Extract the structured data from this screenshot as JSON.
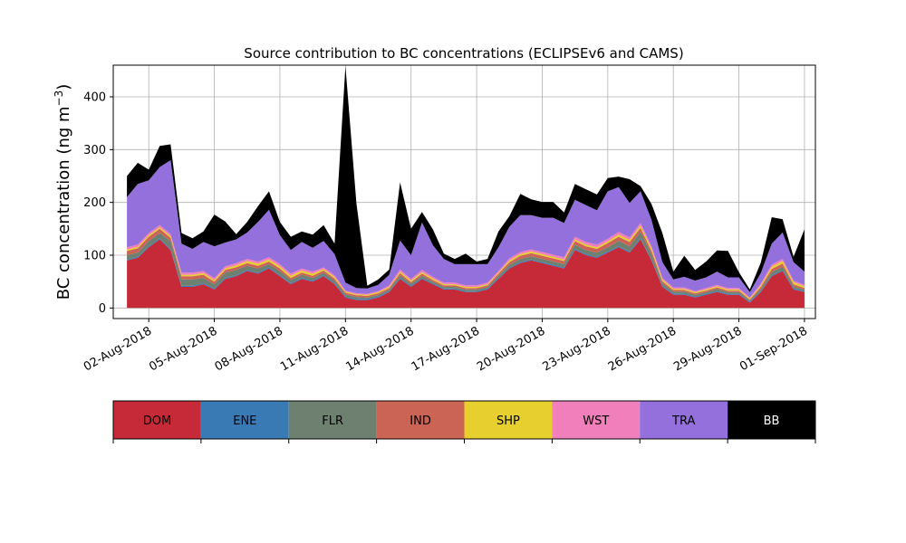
{
  "chart_data": {
    "type": "area",
    "stacked": true,
    "title": "Source contribution to BC concentrations (ECLIPSEv6 and CAMS)",
    "ylabel": "BC concentration (ng m",
    "ylabel_sup": "−3",
    "ylabel_close": ")",
    "ylim": [
      -20,
      460
    ],
    "xlim": [
      "2018-07-31T09:00",
      "2018-09-01T12:00"
    ],
    "grid": true,
    "yticks": [
      0,
      100,
      200,
      300,
      400
    ],
    "xticks": [
      {
        "date": "2018-08-02",
        "label": "02-Aug-2018"
      },
      {
        "date": "2018-08-05",
        "label": "05-Aug-2018"
      },
      {
        "date": "2018-08-08",
        "label": "08-Aug-2018"
      },
      {
        "date": "2018-08-11",
        "label": "11-Aug-2018"
      },
      {
        "date": "2018-08-14",
        "label": "14-Aug-2018"
      },
      {
        "date": "2018-08-17",
        "label": "17-Aug-2018"
      },
      {
        "date": "2018-08-20",
        "label": "20-Aug-2018"
      },
      {
        "date": "2018-08-23",
        "label": "23-Aug-2018"
      },
      {
        "date": "2018-08-26",
        "label": "26-Aug-2018"
      },
      {
        "date": "2018-08-29",
        "label": "29-Aug-2018"
      },
      {
        "date": "2018-09-01",
        "label": "01-Sep-2018"
      }
    ],
    "x": [
      "2018-08-01T00:00",
      "2018-08-01T12:00",
      "2018-08-02T00:00",
      "2018-08-02T12:00",
      "2018-08-03T00:00",
      "2018-08-03T12:00",
      "2018-08-04T00:00",
      "2018-08-04T12:00",
      "2018-08-05T00:00",
      "2018-08-05T12:00",
      "2018-08-06T00:00",
      "2018-08-06T12:00",
      "2018-08-07T00:00",
      "2018-08-07T12:00",
      "2018-08-08T00:00",
      "2018-08-08T12:00",
      "2018-08-09T00:00",
      "2018-08-09T12:00",
      "2018-08-10T00:00",
      "2018-08-10T12:00",
      "2018-08-11T00:00",
      "2018-08-11T12:00",
      "2018-08-12T00:00",
      "2018-08-12T12:00",
      "2018-08-13T00:00",
      "2018-08-13T12:00",
      "2018-08-14T00:00",
      "2018-08-14T12:00",
      "2018-08-15T00:00",
      "2018-08-15T12:00",
      "2018-08-16T00:00",
      "2018-08-16T12:00",
      "2018-08-17T00:00",
      "2018-08-17T12:00",
      "2018-08-18T00:00",
      "2018-08-18T12:00",
      "2018-08-19T00:00",
      "2018-08-19T12:00",
      "2018-08-20T00:00",
      "2018-08-20T12:00",
      "2018-08-21T00:00",
      "2018-08-21T12:00",
      "2018-08-22T00:00",
      "2018-08-22T12:00",
      "2018-08-23T00:00",
      "2018-08-23T12:00",
      "2018-08-24T00:00",
      "2018-08-24T12:00",
      "2018-08-25T00:00",
      "2018-08-25T12:00",
      "2018-08-26T00:00",
      "2018-08-26T12:00",
      "2018-08-27T00:00",
      "2018-08-27T12:00",
      "2018-08-28T00:00",
      "2018-08-28T12:00",
      "2018-08-29T00:00",
      "2018-08-29T12:00",
      "2018-08-30T00:00",
      "2018-08-30T12:00",
      "2018-08-31T00:00",
      "2018-08-31T12:00",
      "2018-09-01T00:00"
    ],
    "series": [
      {
        "name": "DOM",
        "color": "#c62a38",
        "values": [
          90,
          95,
          115,
          130,
          110,
          40,
          40,
          45,
          35,
          55,
          60,
          70,
          65,
          75,
          60,
          45,
          55,
          50,
          60,
          45,
          20,
          15,
          15,
          20,
          30,
          55,
          40,
          55,
          45,
          35,
          35,
          30,
          30,
          35,
          55,
          75,
          85,
          90,
          85,
          80,
          75,
          110,
          100,
          95,
          105,
          115,
          105,
          130,
          90,
          40,
          25,
          25,
          20,
          25,
          30,
          25,
          25,
          10,
          30,
          60,
          70,
          35,
          30
        ]
      },
      {
        "name": "ENE",
        "color": "#3a7ab4",
        "values": [
          2,
          2,
          2,
          2,
          2,
          2,
          2,
          2,
          2,
          2,
          2,
          2,
          2,
          2,
          2,
          2,
          2,
          2,
          2,
          2,
          2,
          2,
          2,
          2,
          2,
          2,
          2,
          2,
          2,
          2,
          2,
          2,
          2,
          2,
          2,
          2,
          2,
          2,
          2,
          2,
          2,
          2,
          2,
          2,
          2,
          2,
          2,
          2,
          2,
          2,
          2,
          2,
          2,
          2,
          2,
          2,
          2,
          2,
          2,
          2,
          2,
          2,
          2
        ]
      },
      {
        "name": "FLR",
        "color": "#6e8070",
        "values": [
          8,
          8,
          10,
          10,
          15,
          12,
          12,
          10,
          8,
          10,
          10,
          8,
          8,
          6,
          8,
          6,
          6,
          5,
          5,
          5,
          4,
          4,
          3,
          3,
          3,
          5,
          4,
          4,
          3,
          3,
          3,
          3,
          3,
          3,
          4,
          5,
          6,
          6,
          6,
          6,
          6,
          8,
          8,
          8,
          8,
          10,
          10,
          12,
          10,
          5,
          4,
          4,
          3,
          3,
          4,
          3,
          3,
          2,
          4,
          6,
          6,
          4,
          3
        ]
      },
      {
        "name": "IND",
        "color": "#cc6455",
        "values": [
          8,
          8,
          8,
          8,
          6,
          6,
          6,
          6,
          5,
          5,
          5,
          5,
          5,
          5,
          5,
          4,
          4,
          4,
          4,
          4,
          3,
          3,
          3,
          3,
          3,
          4,
          3,
          4,
          3,
          3,
          3,
          3,
          3,
          3,
          4,
          5,
          6,
          6,
          6,
          6,
          6,
          7,
          7,
          7,
          8,
          8,
          8,
          8,
          6,
          4,
          3,
          3,
          3,
          3,
          3,
          3,
          3,
          2,
          4,
          6,
          6,
          4,
          3
        ]
      },
      {
        "name": "SHP",
        "color": "#e6cf2e",
        "values": [
          3,
          3,
          3,
          3,
          3,
          3,
          3,
          3,
          3,
          3,
          4,
          4,
          4,
          4,
          4,
          4,
          4,
          4,
          3,
          3,
          2,
          2,
          2,
          2,
          2,
          3,
          3,
          3,
          3,
          2,
          2,
          2,
          2,
          2,
          2,
          3,
          3,
          3,
          3,
          3,
          3,
          3,
          3,
          3,
          3,
          4,
          4,
          4,
          5,
          3,
          2,
          2,
          2,
          2,
          2,
          2,
          2,
          2,
          3,
          4,
          5,
          4,
          3
        ]
      },
      {
        "name": "WST",
        "color": "#f07fbb",
        "values": [
          4,
          4,
          4,
          4,
          4,
          4,
          4,
          4,
          4,
          4,
          4,
          4,
          4,
          4,
          4,
          4,
          4,
          4,
          3,
          3,
          2,
          2,
          2,
          2,
          3,
          4,
          3,
          4,
          3,
          3,
          3,
          3,
          3,
          3,
          3,
          4,
          4,
          4,
          4,
          4,
          4,
          5,
          5,
          5,
          5,
          5,
          5,
          5,
          4,
          3,
          3,
          3,
          2,
          3,
          3,
          3,
          3,
          2,
          3,
          4,
          4,
          3,
          3
        ]
      },
      {
        "name": "TRA",
        "color": "#9370db",
        "values": [
          95,
          115,
          100,
          110,
          140,
          55,
          45,
          55,
          60,
          45,
          45,
          50,
          75,
          90,
          55,
          45,
          50,
          45,
          50,
          40,
          15,
          10,
          10,
          12,
          20,
          55,
          45,
          90,
          60,
          45,
          35,
          40,
          40,
          35,
          45,
          60,
          70,
          65,
          65,
          70,
          65,
          70,
          70,
          65,
          90,
          85,
          65,
          60,
          50,
          30,
          15,
          20,
          20,
          20,
          25,
          20,
          20,
          10,
          20,
          40,
          50,
          35,
          25
        ]
      },
      {
        "name": "BB",
        "color": "#000000",
        "values": [
          40,
          40,
          20,
          40,
          30,
          20,
          20,
          20,
          60,
          40,
          10,
          20,
          30,
          35,
          25,
          25,
          20,
          25,
          30,
          20,
          410,
          160,
          5,
          10,
          10,
          110,
          50,
          20,
          30,
          10,
          10,
          20,
          5,
          10,
          30,
          20,
          40,
          30,
          30,
          30,
          20,
          30,
          30,
          30,
          25,
          20,
          45,
          10,
          30,
          55,
          15,
          40,
          20,
          30,
          40,
          50,
          10,
          5,
          20,
          50,
          25,
          10,
          80
        ]
      }
    ]
  }
}
